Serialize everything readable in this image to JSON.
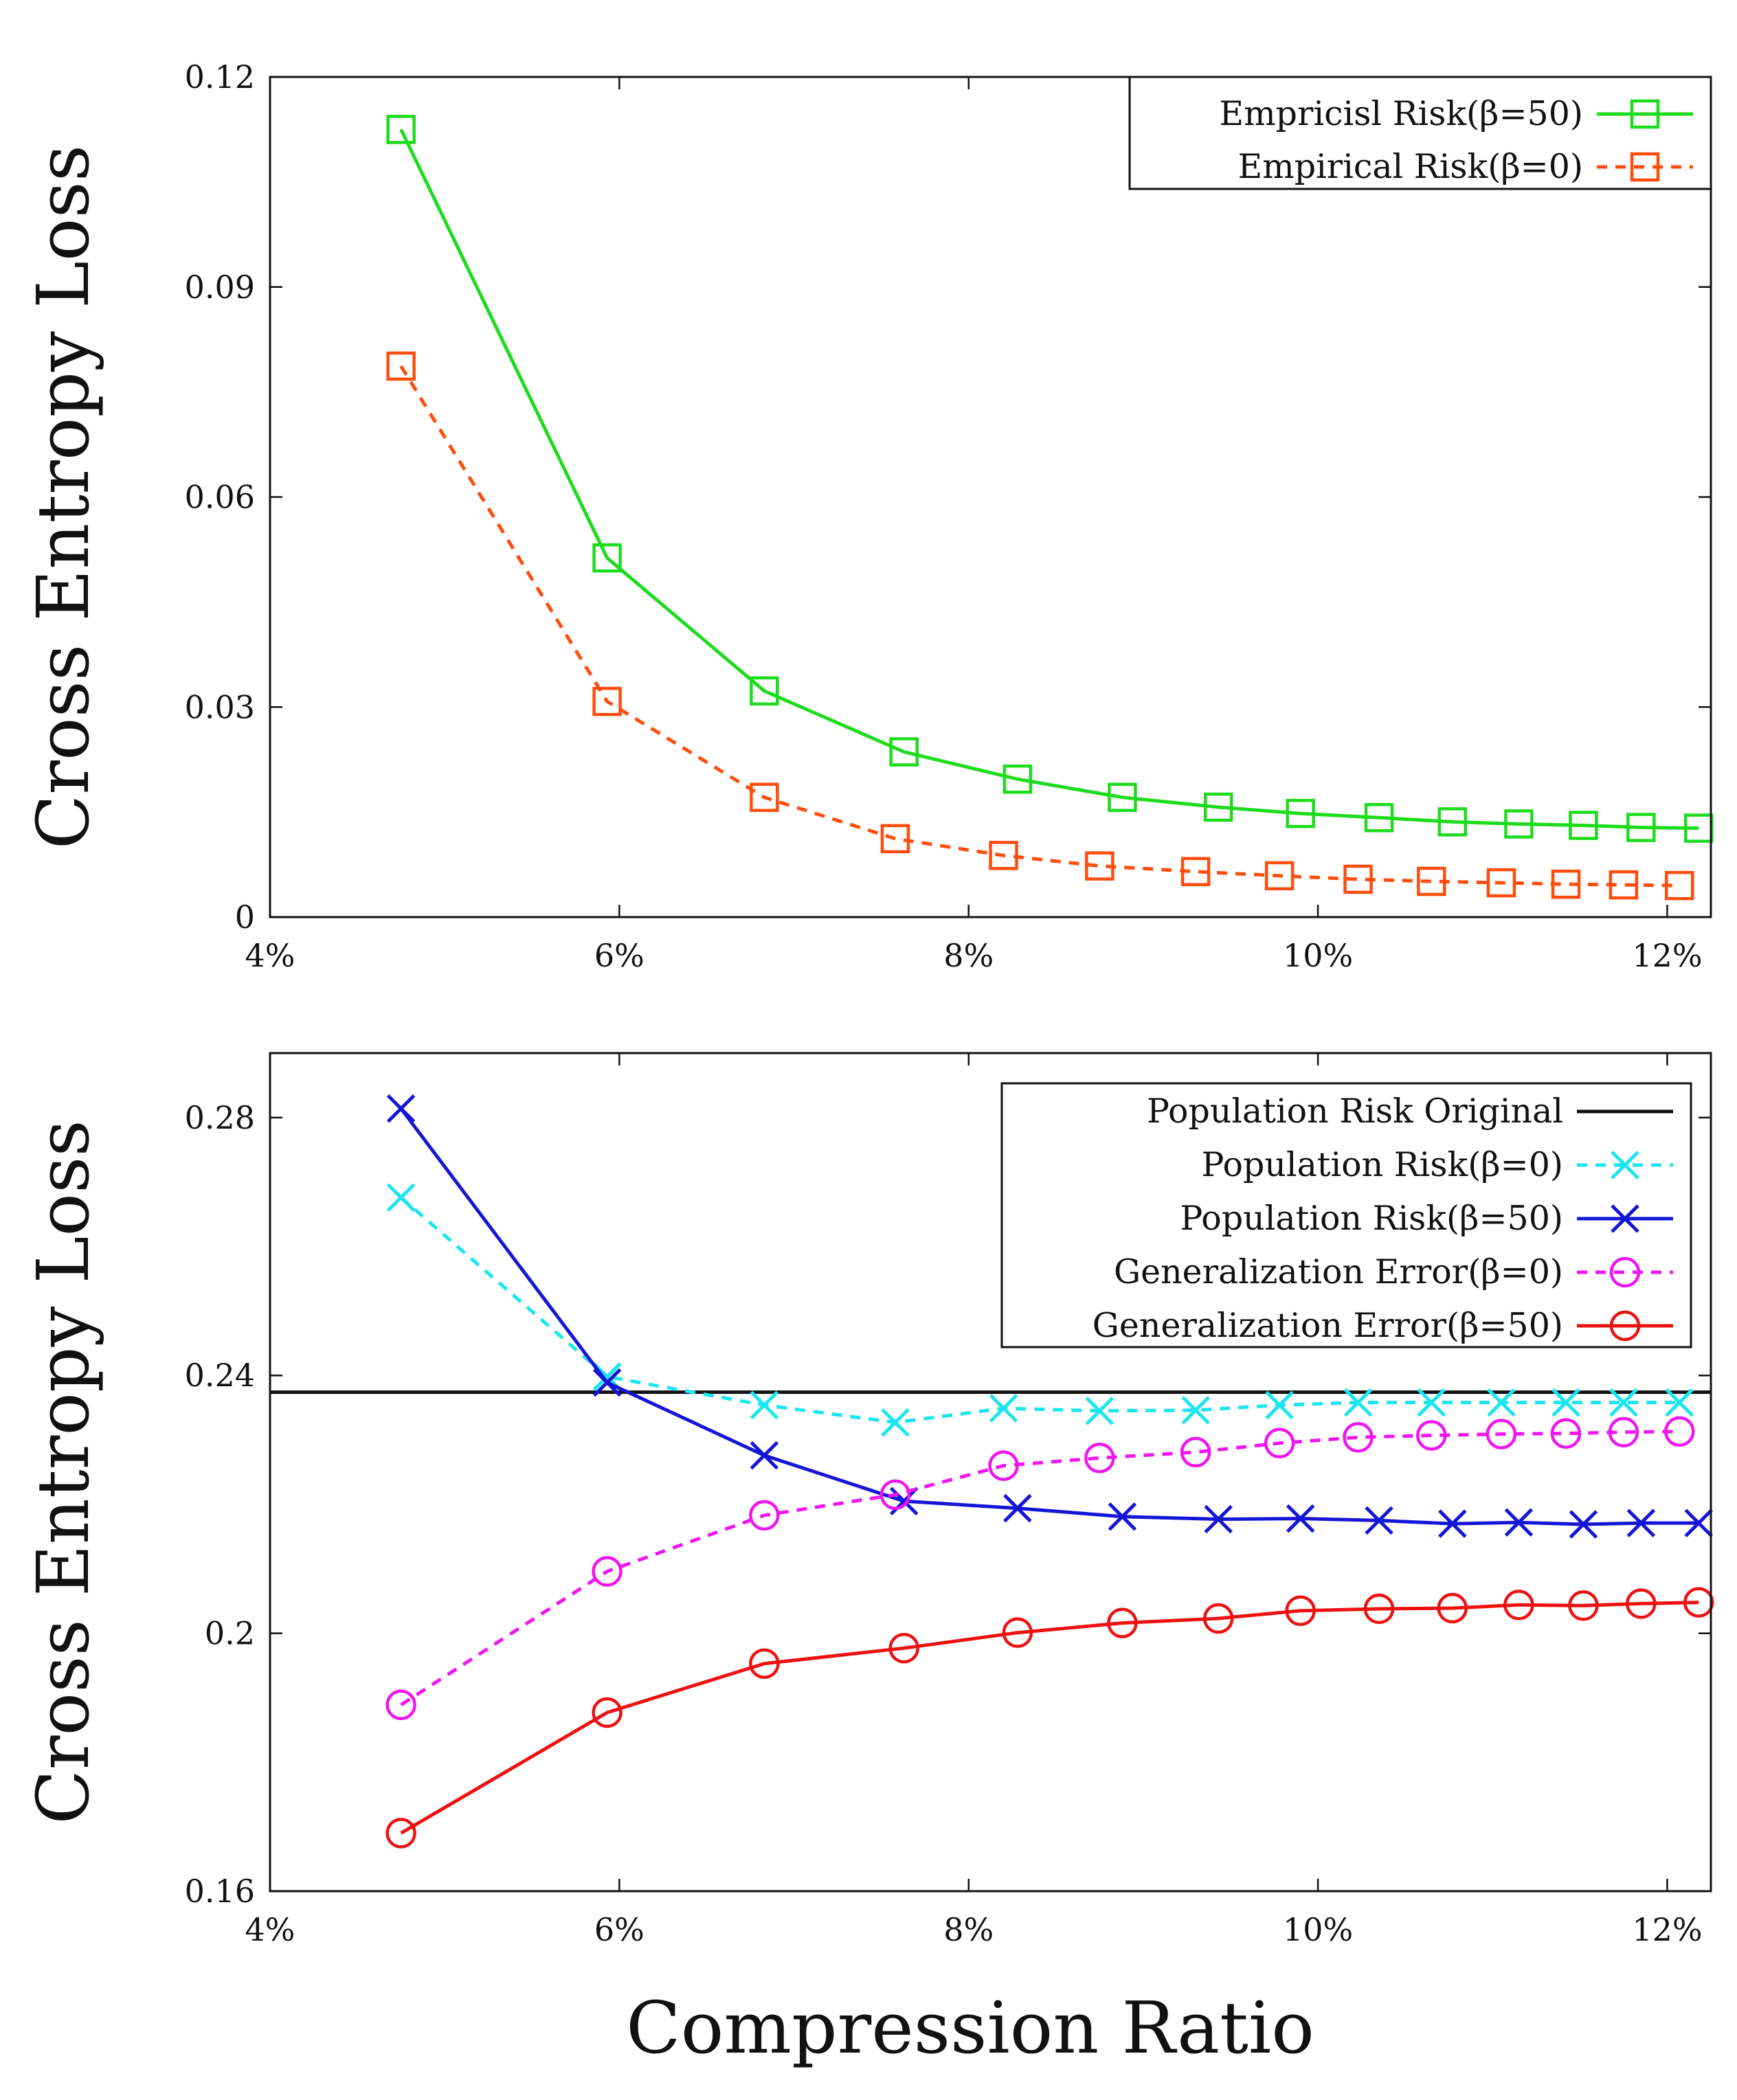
{
  "colors": {
    "green": "#1ddc1d",
    "orange": "#ff4d0d",
    "cyan": "#19e6ee",
    "blue": "#1515d8",
    "magenta": "#f015f0",
    "red": "#ee1111",
    "black": "#111111"
  },
  "figure": {
    "xlabel": "Compression Ratio"
  },
  "chart_data": [
    {
      "type": "line",
      "panel": "top",
      "ylabel": "Cross Entropy Loss",
      "xlim": [
        4,
        12.25
      ],
      "ylim": [
        0,
        0.12
      ],
      "xtick_values": [
        4,
        6,
        8,
        10,
        12
      ],
      "xtick_labels": [
        "4%",
        "6%",
        "8%",
        "10%",
        "12%"
      ],
      "ytick_values": [
        0,
        0.03,
        0.06,
        0.09,
        0.12
      ],
      "ytick_labels": [
        "0",
        "0.03",
        "0.06",
        "0.09",
        "0.12"
      ],
      "legend_position": "top-right",
      "series": [
        {
          "name": "Empricisl Risk(β=50)",
          "color": "#1ddc1d",
          "dashed": false,
          "marker": "square",
          "x": [
            4.75,
            5.93,
            6.83,
            7.63,
            8.28,
            8.88,
            9.43,
            9.9,
            10.35,
            10.77,
            11.15,
            11.52,
            11.85,
            12.18
          ],
          "y": [
            0.1125,
            0.0513,
            0.0323,
            0.0236,
            0.0197,
            0.0171,
            0.0157,
            0.0148,
            0.0142,
            0.0136,
            0.0133,
            0.0131,
            0.0128,
            0.0127
          ]
        },
        {
          "name": "Empirical Risk(β=0)",
          "color": "#ff4d0d",
          "dashed": true,
          "marker": "square",
          "x": [
            4.75,
            5.93,
            6.83,
            7.58,
            8.2,
            8.75,
            9.3,
            9.78,
            10.23,
            10.65,
            11.05,
            11.42,
            11.75,
            12.07
          ],
          "y": [
            0.0787,
            0.0308,
            0.0171,
            0.0112,
            0.0088,
            0.0073,
            0.0065,
            0.0059,
            0.0054,
            0.0051,
            0.0049,
            0.0047,
            0.0046,
            0.0045
          ]
        }
      ]
    },
    {
      "type": "line",
      "panel": "bottom",
      "ylabel": "Cross Entropy Loss",
      "xlim": [
        4,
        12.25
      ],
      "ylim": [
        0.16,
        0.29
      ],
      "xtick_values": [
        4,
        6,
        8,
        10,
        12
      ],
      "xtick_labels": [
        "4%",
        "6%",
        "8%",
        "10%",
        "12%"
      ],
      "ytick_values": [
        0.16,
        0.2,
        0.24,
        0.28
      ],
      "ytick_labels": [
        "0.16",
        "0.2",
        "0.24",
        "0.28"
      ],
      "legend_position": "top-right",
      "series": [
        {
          "name": "Population Risk Original",
          "color": "#111111",
          "dashed": false,
          "marker": "none",
          "hline": 0.2374
        },
        {
          "name": "Population Risk(β=0)",
          "color": "#19e6ee",
          "dashed": true,
          "marker": "x",
          "x": [
            4.75,
            5.93,
            6.83,
            7.58,
            8.2,
            8.75,
            9.3,
            9.78,
            10.23,
            10.65,
            11.05,
            11.42,
            11.75,
            12.07
          ],
          "y": [
            0.2676,
            0.2398,
            0.2354,
            0.2327,
            0.2349,
            0.2345,
            0.2346,
            0.2354,
            0.2358,
            0.2358,
            0.2358,
            0.2358,
            0.2358,
            0.2358
          ]
        },
        {
          "name": "Population Risk(β=50)",
          "color": "#1515d8",
          "dashed": false,
          "marker": "x",
          "x": [
            4.75,
            5.93,
            6.83,
            7.63,
            8.28,
            8.88,
            9.43,
            9.9,
            10.35,
            10.77,
            11.15,
            11.52,
            11.85,
            12.18
          ],
          "y": [
            0.2814,
            0.2389,
            0.2276,
            0.2205,
            0.2194,
            0.2181,
            0.2177,
            0.2178,
            0.2175,
            0.217,
            0.2172,
            0.2169,
            0.2171,
            0.2171
          ]
        },
        {
          "name": "Generalization Error(β=0)",
          "color": "#f015f0",
          "dashed": true,
          "marker": "circle",
          "x": [
            4.75,
            5.93,
            6.83,
            7.58,
            8.2,
            8.75,
            9.3,
            9.78,
            10.23,
            10.65,
            11.05,
            11.42,
            11.75,
            12.07
          ],
          "y": [
            0.1889,
            0.2096,
            0.2183,
            0.2215,
            0.226,
            0.2272,
            0.2281,
            0.2295,
            0.2304,
            0.2307,
            0.2309,
            0.231,
            0.2312,
            0.2313
          ]
        },
        {
          "name": "Generalization Error(β=50)",
          "color": "#ee1111",
          "dashed": false,
          "marker": "circle",
          "x": [
            4.75,
            5.93,
            6.83,
            7.63,
            8.28,
            8.88,
            9.43,
            9.9,
            10.35,
            10.77,
            11.15,
            11.52,
            11.85,
            12.18
          ],
          "y": [
            0.169,
            0.1877,
            0.1953,
            0.1977,
            0.2001,
            0.2016,
            0.2023,
            0.2035,
            0.2038,
            0.2039,
            0.2044,
            0.2043,
            0.2046,
            0.2048
          ]
        }
      ]
    }
  ]
}
